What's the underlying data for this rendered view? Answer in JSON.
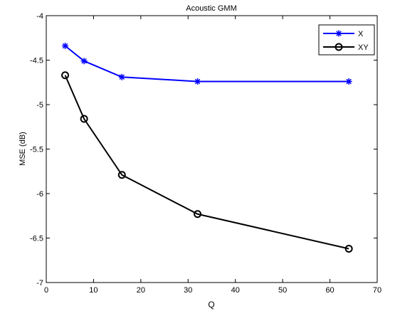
{
  "chart_data": {
    "type": "line",
    "title": "Acoustic GMM",
    "xlabel": "Q",
    "ylabel": "MSE (dB)",
    "xlim": [
      0,
      70
    ],
    "ylim": [
      -7,
      -4
    ],
    "xticks": [
      0,
      10,
      20,
      30,
      40,
      50,
      60,
      70
    ],
    "yticks": [
      -7,
      -6.5,
      -6,
      -5.5,
      -5,
      -4.5,
      -4
    ],
    "xtick_labels": [
      "0",
      "10",
      "20",
      "30",
      "40",
      "50",
      "60",
      "70"
    ],
    "ytick_labels": [
      "-7",
      "-6.5",
      "-6",
      "-5.5",
      "-5",
      "-4.5",
      "-4"
    ],
    "grid": false,
    "legend_position": "top-right",
    "series": [
      {
        "name": "X",
        "color": "#0000ff",
        "marker": "star",
        "x": [
          4,
          8,
          16,
          32,
          64
        ],
        "y": [
          -4.34,
          -4.51,
          -4.69,
          -4.74,
          -4.74
        ]
      },
      {
        "name": "XY",
        "color": "#000000",
        "marker": "circle",
        "x": [
          4,
          8,
          16,
          32,
          64
        ],
        "y": [
          -4.67,
          -5.16,
          -5.79,
          -6.23,
          -6.62
        ]
      }
    ]
  }
}
